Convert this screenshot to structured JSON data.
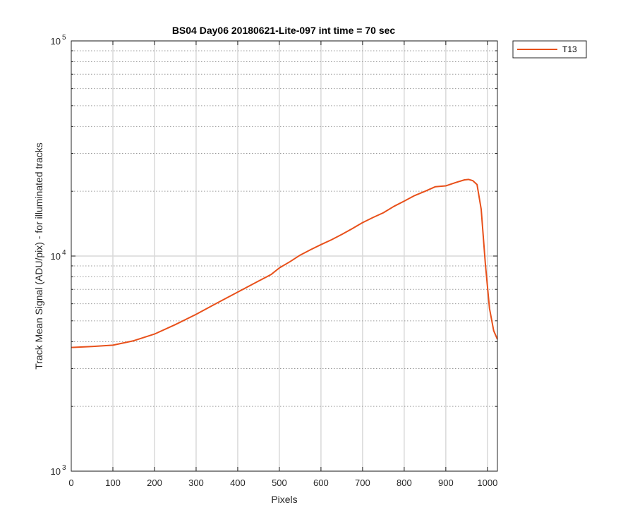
{
  "chart_data": {
    "type": "line",
    "title": "BS04 Day06 20180621-Lite-097 int time = 70 sec",
    "xlabel": "Pixels",
    "ylabel": "Track Mean Signal (ADU/pix) - for illuminated tracks",
    "xlim": [
      0,
      1024
    ],
    "ylim": [
      1000,
      100000
    ],
    "yscale": "log",
    "xticks": [
      0,
      100,
      200,
      300,
      400,
      500,
      600,
      700,
      800,
      900,
      1000
    ],
    "xtick_labels": [
      "0",
      "100",
      "200",
      "300",
      "400",
      "500",
      "600",
      "700",
      "800",
      "900",
      "1000"
    ],
    "yticks": [
      1000,
      10000,
      100000
    ],
    "ytick_labels": [
      {
        "base": "10",
        "exp": "3"
      },
      {
        "base": "10",
        "exp": "4"
      },
      {
        "base": "10",
        "exp": "5"
      }
    ],
    "grid": {
      "x": "major-solid",
      "y": "major-solid-minor-dotted"
    },
    "legend_position": "outside-top-right",
    "series": [
      {
        "name": "T13",
        "color": "#e8501a",
        "x": [
          0,
          50,
          100,
          150,
          200,
          250,
          300,
          350,
          400,
          450,
          480,
          500,
          525,
          550,
          575,
          600,
          625,
          650,
          675,
          700,
          725,
          750,
          775,
          800,
          825,
          850,
          875,
          900,
          925,
          945,
          955,
          965,
          975,
          985,
          995,
          1005,
          1015,
          1024
        ],
        "y": [
          3760,
          3800,
          3850,
          4040,
          4340,
          4800,
          5360,
          6040,
          6800,
          7650,
          8200,
          8800,
          9400,
          10100,
          10700,
          11300,
          11900,
          12600,
          13400,
          14300,
          15100,
          15900,
          17000,
          18000,
          19100,
          20000,
          21000,
          21200,
          22000,
          22600,
          22700,
          22400,
          21500,
          16500,
          9200,
          5700,
          4500,
          4100
        ]
      }
    ]
  }
}
